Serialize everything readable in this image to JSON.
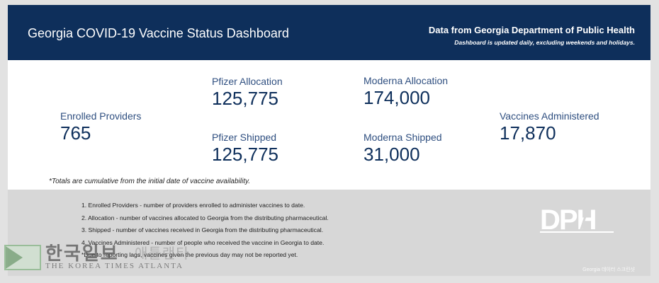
{
  "header": {
    "title": "Georgia COVID-19 Vaccine Status Dashboard",
    "source": "Data from Georgia Department of Public Health",
    "update_note": "Dashboard is updated daily, excluding weekends and holidays."
  },
  "stats": {
    "enrolled_providers": {
      "label": "Enrolled Providers",
      "value": "765"
    },
    "pfizer_allocation": {
      "label": "Pfizer Allocation",
      "value": "125,775"
    },
    "pfizer_shipped": {
      "label": "Pfizer Shipped",
      "value": "125,775"
    },
    "moderna_allocation": {
      "label": "Moderna Allocation",
      "value": "174,000"
    },
    "moderna_shipped": {
      "label": "Moderna Shipped",
      "value": "31,000"
    },
    "vaccines_administered": {
      "label": "Vaccines Administered",
      "value": "17,870"
    }
  },
  "footnote": "*Totals are cumulative from the initial date of vaccine availability.",
  "definitions": [
    "1. Enrolled Providers - number of providers enrolled to administer vaccines to date.",
    "2. Allocation - number of vaccines allocated to Georgia from the distributing pharmaceutical.",
    "3. Shipped - number of vaccines received in Georgia from the distributing pharmaceutical.",
    "4. Vaccines Administered - number of people who received the vaccine in Georgia to date.",
    "*Due to reporting lags, vaccines given the previous day may not be reported yet."
  ],
  "logo": {
    "text": "DPH",
    "icon": "dph-logo"
  },
  "watermark": {
    "korean": "한국일보",
    "korean_faded": "애틀랜타",
    "english": "THE KOREA TIMES ATLANTA"
  },
  "colors": {
    "header_bg": "#0e2f5b",
    "value_text": "#0e2f5b",
    "definitions_bg": "#d7d7d7"
  }
}
